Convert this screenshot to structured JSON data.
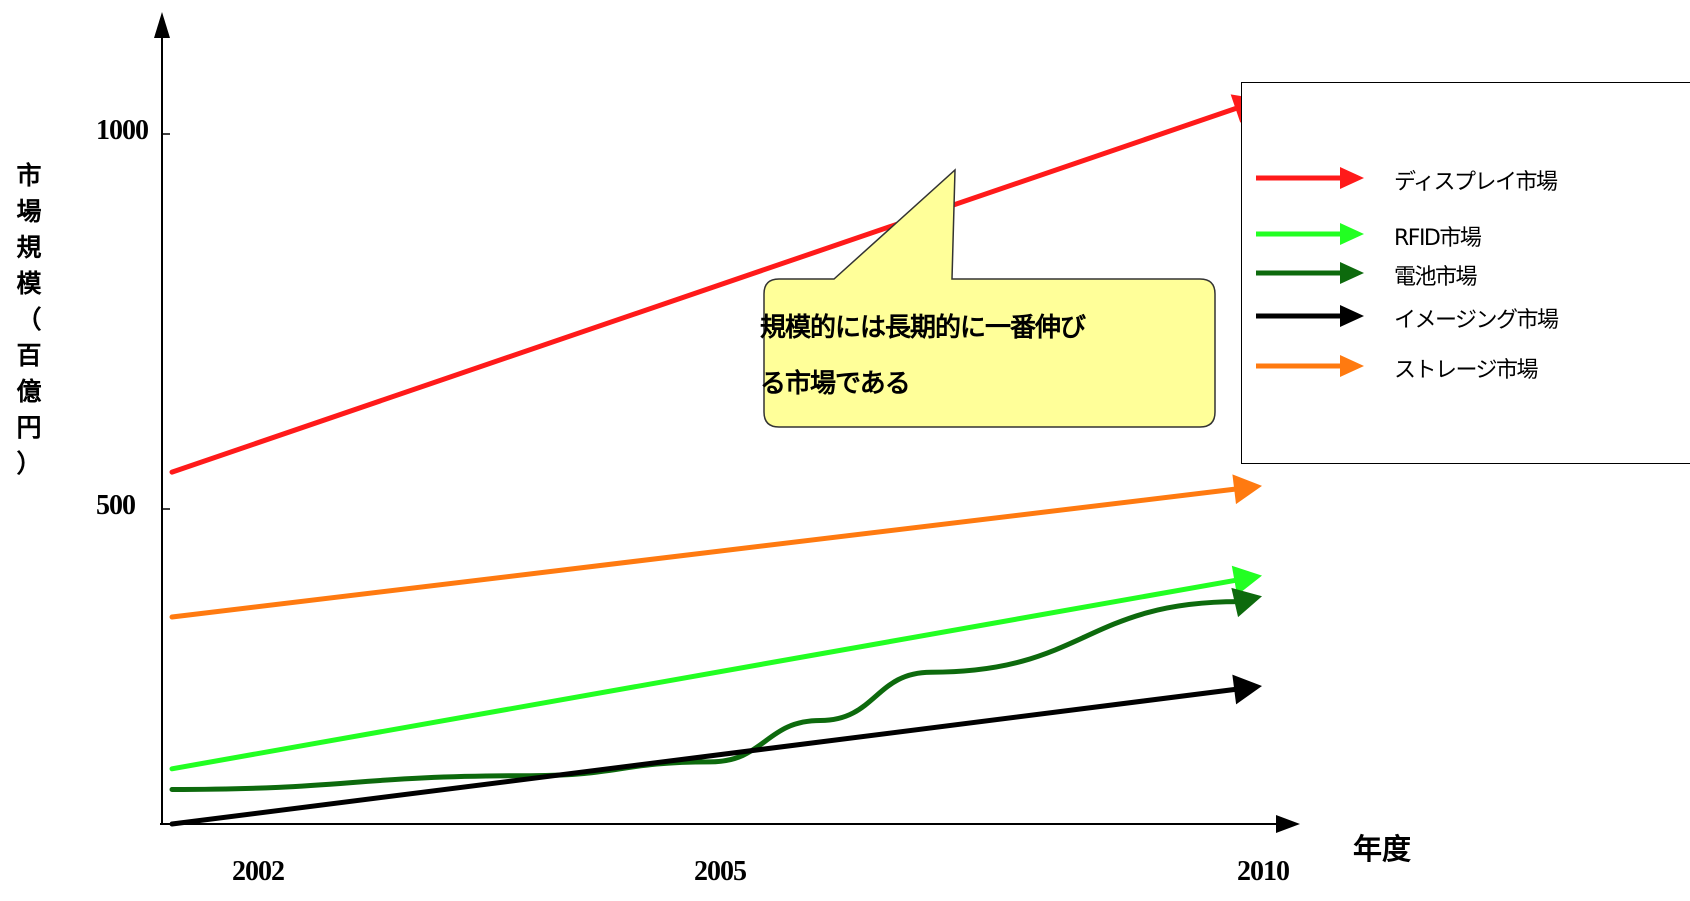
{
  "chart_data": {
    "type": "line",
    "ylabel_chars": [
      "市",
      "場",
      "規",
      "模",
      "（",
      "百",
      "億",
      "円",
      "）"
    ],
    "xlabel": "年度",
    "x_ticks": [
      "2002",
      "2005",
      "2010"
    ],
    "y_ticks": [
      "500",
      "1000"
    ],
    "ylim": [
      0,
      1000
    ],
    "series": [
      {
        "name": "ディスプレイ市場",
        "color": "#ff1a1a",
        "points": [
          [
            2002,
            510
          ],
          [
            2010,
            1050
          ]
        ]
      },
      {
        "name": "RFID市場",
        "color": "#22ff22",
        "points": [
          [
            2002,
            80
          ],
          [
            2010,
            360
          ]
        ]
      },
      {
        "name": "電池市場",
        "color": "#0d6a0d",
        "points": [
          [
            2002,
            50
          ],
          [
            2004,
            70
          ],
          [
            2005,
            90
          ],
          [
            2006,
            150
          ],
          [
            2007,
            220
          ],
          [
            2010,
            330
          ]
        ]
      },
      {
        "name": "イメージング市場",
        "color": "#000000",
        "points": [
          [
            2002,
            0
          ],
          [
            2010,
            200
          ]
        ]
      },
      {
        "name": "ストレージ市場",
        "color": "#ff7a10",
        "points": [
          [
            2002,
            300
          ],
          [
            2010,
            490
          ]
        ]
      }
    ],
    "annotation": {
      "line1": "規模的には長期的に一番伸び",
      "line2": "る市場である",
      "fill": "#ffff99"
    }
  }
}
